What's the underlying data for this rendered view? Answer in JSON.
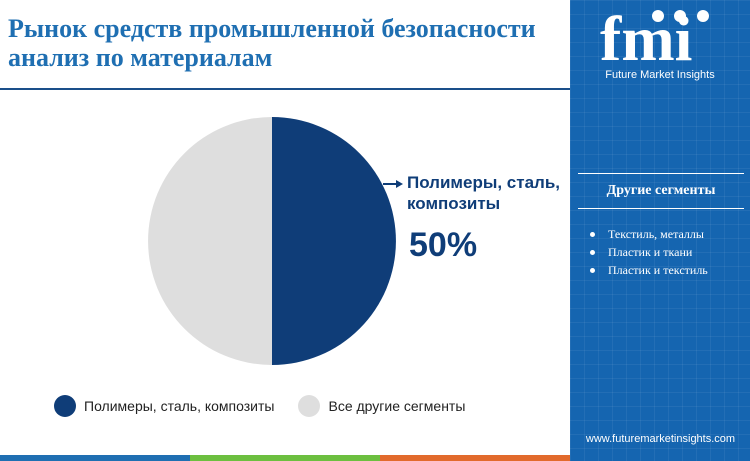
{
  "title": "Рынок средств промышленной безопасности анализ по материалам",
  "chart_data": {
    "type": "pie",
    "slices": [
      {
        "label": "Полимеры, сталь, композиты",
        "value": 50,
        "color": "#0f3d78"
      },
      {
        "label": "Все другие сегменты",
        "value": 50,
        "color": "#dedede"
      }
    ],
    "callout": {
      "label": "Полимеры, сталь, композиты",
      "value": "50%"
    }
  },
  "legend": [
    {
      "label": "Полимеры, сталь, композиты",
      "color": "#0f3d78"
    },
    {
      "label": "Все другие сегменты",
      "color": "#dedede"
    }
  ],
  "side_panel": {
    "brand": "Future Market Insights",
    "heading": "Другие сегменты",
    "items": [
      "Текстиль, металлы",
      "Пластик и ткани",
      "Пластик и текстиль"
    ],
    "website": "www.futuremarketinsights.com"
  },
  "colors": {
    "accent_dark": "#0f3d78",
    "title": "#1f6fb2",
    "panel": "#1565b0",
    "bottom_bar": [
      "#1f6fb2",
      "#6cbf3f",
      "#e26a2c",
      "#1f6fb2"
    ]
  }
}
